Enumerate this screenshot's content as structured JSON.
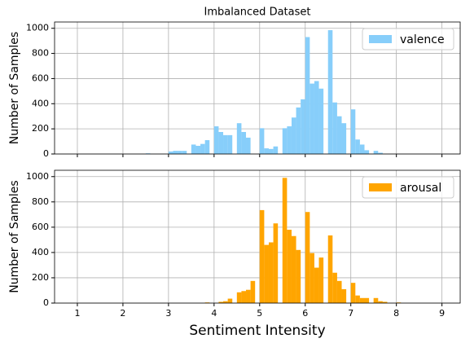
{
  "chart_data": [
    {
      "type": "histogram",
      "title": "Imbalanced Dataset",
      "ylabel": "Number of Samples",
      "bins": [
        1.0,
        1.1,
        1.2,
        1.3,
        1.4,
        1.5,
        1.6,
        1.7,
        1.8,
        1.9,
        2.0,
        2.1,
        2.2,
        2.3,
        2.4,
        2.5,
        2.6,
        2.7,
        2.8,
        2.9,
        3.0,
        3.1,
        3.2,
        3.3,
        3.4,
        3.5,
        3.6,
        3.7,
        3.8,
        3.9,
        4.0,
        4.1,
        4.2,
        4.3,
        4.4,
        4.5,
        4.6,
        4.7,
        4.8,
        4.9,
        5.0,
        5.1,
        5.2,
        5.3,
        5.4,
        5.5,
        5.6,
        5.7,
        5.8,
        5.9,
        6.0,
        6.1,
        6.2,
        6.3,
        6.4,
        6.5,
        6.6,
        6.7,
        6.8,
        6.9,
        7.0,
        7.1,
        7.2,
        7.3,
        7.4,
        7.5,
        7.6,
        7.7,
        7.8,
        7.9,
        8.0,
        8.1,
        8.2,
        8.3,
        8.4,
        8.5,
        8.6,
        8.7,
        8.8,
        8.9,
        9.0
      ],
      "series": [
        {
          "name": "valence",
          "color": "#87cefa",
          "values": [
            0,
            0,
            0,
            0,
            0,
            0,
            0,
            0,
            0,
            0,
            0,
            0,
            0,
            0,
            0,
            5,
            0,
            0,
            0,
            0,
            20,
            25,
            25,
            25,
            0,
            75,
            65,
            80,
            110,
            0,
            220,
            175,
            150,
            150,
            0,
            245,
            175,
            130,
            0,
            0,
            205,
            45,
            40,
            60,
            0,
            205,
            220,
            290,
            370,
            435,
            930,
            560,
            580,
            520,
            0,
            985,
            410,
            300,
            245,
            0,
            355,
            115,
            75,
            30,
            0,
            25,
            10,
            0,
            0,
            0,
            0,
            0,
            0,
            0,
            0,
            0,
            0,
            0,
            0,
            0
          ]
        }
      ],
      "xlim": [
        0.5,
        9.4
      ],
      "xticks": [
        1,
        2,
        3,
        4,
        5,
        6,
        7,
        8,
        9
      ],
      "ylim": [
        0,
        1050
      ],
      "yticks": [
        0,
        200,
        400,
        600,
        800,
        1000
      ],
      "grid": true,
      "legend": "upper right"
    },
    {
      "type": "histogram",
      "xlabel": "Sentiment Intensity",
      "ylabel": "Number of Samples",
      "bins": [
        1.0,
        1.1,
        1.2,
        1.3,
        1.4,
        1.5,
        1.6,
        1.7,
        1.8,
        1.9,
        2.0,
        2.1,
        2.2,
        2.3,
        2.4,
        2.5,
        2.6,
        2.7,
        2.8,
        2.9,
        3.0,
        3.1,
        3.2,
        3.3,
        3.4,
        3.5,
        3.6,
        3.7,
        3.8,
        3.9,
        4.0,
        4.1,
        4.2,
        4.3,
        4.4,
        4.5,
        4.6,
        4.7,
        4.8,
        4.9,
        5.0,
        5.1,
        5.2,
        5.3,
        5.4,
        5.5,
        5.6,
        5.7,
        5.8,
        5.9,
        6.0,
        6.1,
        6.2,
        6.3,
        6.4,
        6.5,
        6.6,
        6.7,
        6.8,
        6.9,
        7.0,
        7.1,
        7.2,
        7.3,
        7.4,
        7.5,
        7.6,
        7.7,
        7.8,
        7.9,
        8.0,
        8.1,
        8.2,
        8.3,
        8.4,
        8.5,
        8.6,
        8.7,
        8.8,
        8.9,
        9.0
      ],
      "series": [
        {
          "name": "arousal",
          "color": "#ffa500",
          "values": [
            0,
            0,
            0,
            0,
            0,
            0,
            0,
            0,
            0,
            0,
            0,
            0,
            0,
            0,
            0,
            0,
            0,
            0,
            0,
            0,
            0,
            0,
            0,
            0,
            0,
            0,
            0,
            0,
            5,
            0,
            0,
            10,
            15,
            35,
            0,
            85,
            95,
            105,
            175,
            0,
            735,
            460,
            480,
            630,
            0,
            990,
            580,
            530,
            420,
            0,
            720,
            395,
            280,
            360,
            0,
            535,
            240,
            175,
            110,
            0,
            160,
            60,
            40,
            40,
            0,
            40,
            15,
            10,
            0,
            0,
            5,
            0,
            0,
            0,
            0,
            0,
            0,
            0,
            0,
            0
          ]
        }
      ],
      "xlim": [
        0.5,
        9.4
      ],
      "xticks": [
        1,
        2,
        3,
        4,
        5,
        6,
        7,
        8,
        9
      ],
      "ylim": [
        0,
        1050
      ],
      "yticks": [
        0,
        200,
        400,
        600,
        800,
        1000
      ],
      "grid": true,
      "legend": "upper right"
    }
  ]
}
